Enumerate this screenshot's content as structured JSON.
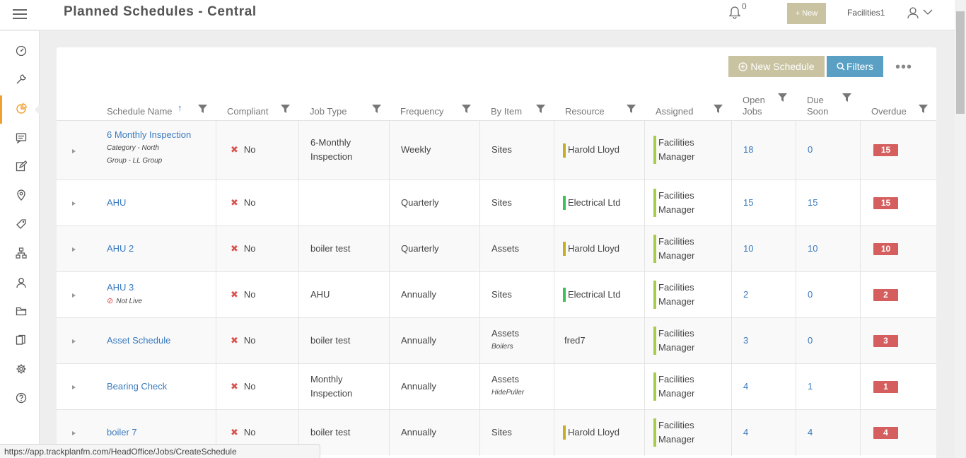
{
  "header": {
    "title": "Planned Schedules - Central",
    "notification_count": "0",
    "new_button": "+ New",
    "user_name": "Facilities1"
  },
  "sidebar": {
    "items": [
      "dashboard-icon",
      "wrench-icon",
      "pie-chart-icon",
      "message-icon",
      "edit-icon",
      "location-pin-icon",
      "tag-icon",
      "hierarchy-icon",
      "contacts-icon",
      "folder-icon",
      "documents-icon",
      "gear-icon",
      "help-icon"
    ],
    "active": "pie-chart-icon"
  },
  "toolbar": {
    "new_schedule": "New Schedule",
    "filters": "Filters",
    "more": "•••"
  },
  "columns": {
    "schedule_name": "Schedule Name",
    "compliant": "Compliant",
    "job_type": "Job Type",
    "frequency": "Frequency",
    "by_item": "By Item",
    "resource": "Resource",
    "assigned": "Assigned",
    "open_jobs_1": "Open",
    "open_jobs_2": "Jobs",
    "due_soon_1": "Due",
    "due_soon_2": "Soon",
    "overdue": "Overdue"
  },
  "rows": [
    {
      "name": "6 Monthly Inspection",
      "sub1": "Category - North",
      "sub2": "Group - LL Group",
      "compliant": "No",
      "job_type_1": "6-Monthly",
      "job_type_2": "Inspection",
      "frequency": "Weekly",
      "by_item": "Sites",
      "by_item_sub": "",
      "resource": "Harold Lloyd",
      "assigned_1": "Facilities",
      "assigned_2": "Manager",
      "open_jobs": "18",
      "due_soon": "0",
      "overdue": "15"
    },
    {
      "name": "AHU",
      "compliant": "No",
      "job_type_1": "",
      "job_type_2": "",
      "frequency": "Quarterly",
      "by_item": "Sites",
      "by_item_sub": "",
      "resource": "Electrical Ltd",
      "assigned_1": "Facilities",
      "assigned_2": "Manager",
      "open_jobs": "15",
      "due_soon": "15",
      "overdue": "15"
    },
    {
      "name": "AHU 2",
      "compliant": "No",
      "job_type_1": "boiler test",
      "job_type_2": "",
      "frequency": "Quarterly",
      "by_item": "Assets",
      "by_item_sub": "",
      "resource": "Harold Lloyd",
      "assigned_1": "Facilities",
      "assigned_2": "Manager",
      "open_jobs": "10",
      "due_soon": "10",
      "overdue": "10"
    },
    {
      "name": "AHU 3",
      "status": "Not Live",
      "compliant": "No",
      "job_type_1": "AHU",
      "job_type_2": "",
      "frequency": "Annually",
      "by_item": "Sites",
      "by_item_sub": "",
      "resource": "Electrical Ltd",
      "assigned_1": "Facilities",
      "assigned_2": "Manager",
      "open_jobs": "2",
      "due_soon": "0",
      "overdue": "2"
    },
    {
      "name": "Asset Schedule",
      "compliant": "No",
      "job_type_1": "boiler test",
      "job_type_2": "",
      "frequency": "Annually",
      "by_item": "Assets",
      "by_item_sub": "Boilers",
      "resource": "fred7",
      "assigned_1": "Facilities",
      "assigned_2": "Manager",
      "open_jobs": "3",
      "due_soon": "0",
      "overdue": "3"
    },
    {
      "name": "Bearing Check",
      "compliant": "No",
      "job_type_1": "Monthly",
      "job_type_2": "Inspection",
      "frequency": "Annually",
      "by_item": "Assets",
      "by_item_sub": "HidePuller",
      "resource": "",
      "assigned_1": "Facilities",
      "assigned_2": "Manager",
      "open_jobs": "4",
      "due_soon": "1",
      "overdue": "1"
    },
    {
      "name": "boiler 7",
      "compliant": "No",
      "job_type_1": "boiler test",
      "job_type_2": "",
      "frequency": "Annually",
      "by_item": "Sites",
      "by_item_sub": "",
      "resource": "Harold Lloyd",
      "assigned_1": "Facilities",
      "assigned_2": "Manager",
      "open_jobs": "4",
      "due_soon": "4",
      "overdue": "4"
    }
  ],
  "status_bar": "https://app.trackplanfm.com/HeadOffice/Jobs/CreateSchedule",
  "colors": {
    "accent_khaki": "#c9c3a2",
    "filters_blue": "#5aa0c4",
    "link_blue": "#3a7abf",
    "overdue_red": "#d55e5e",
    "active_orange": "#f0a030"
  }
}
